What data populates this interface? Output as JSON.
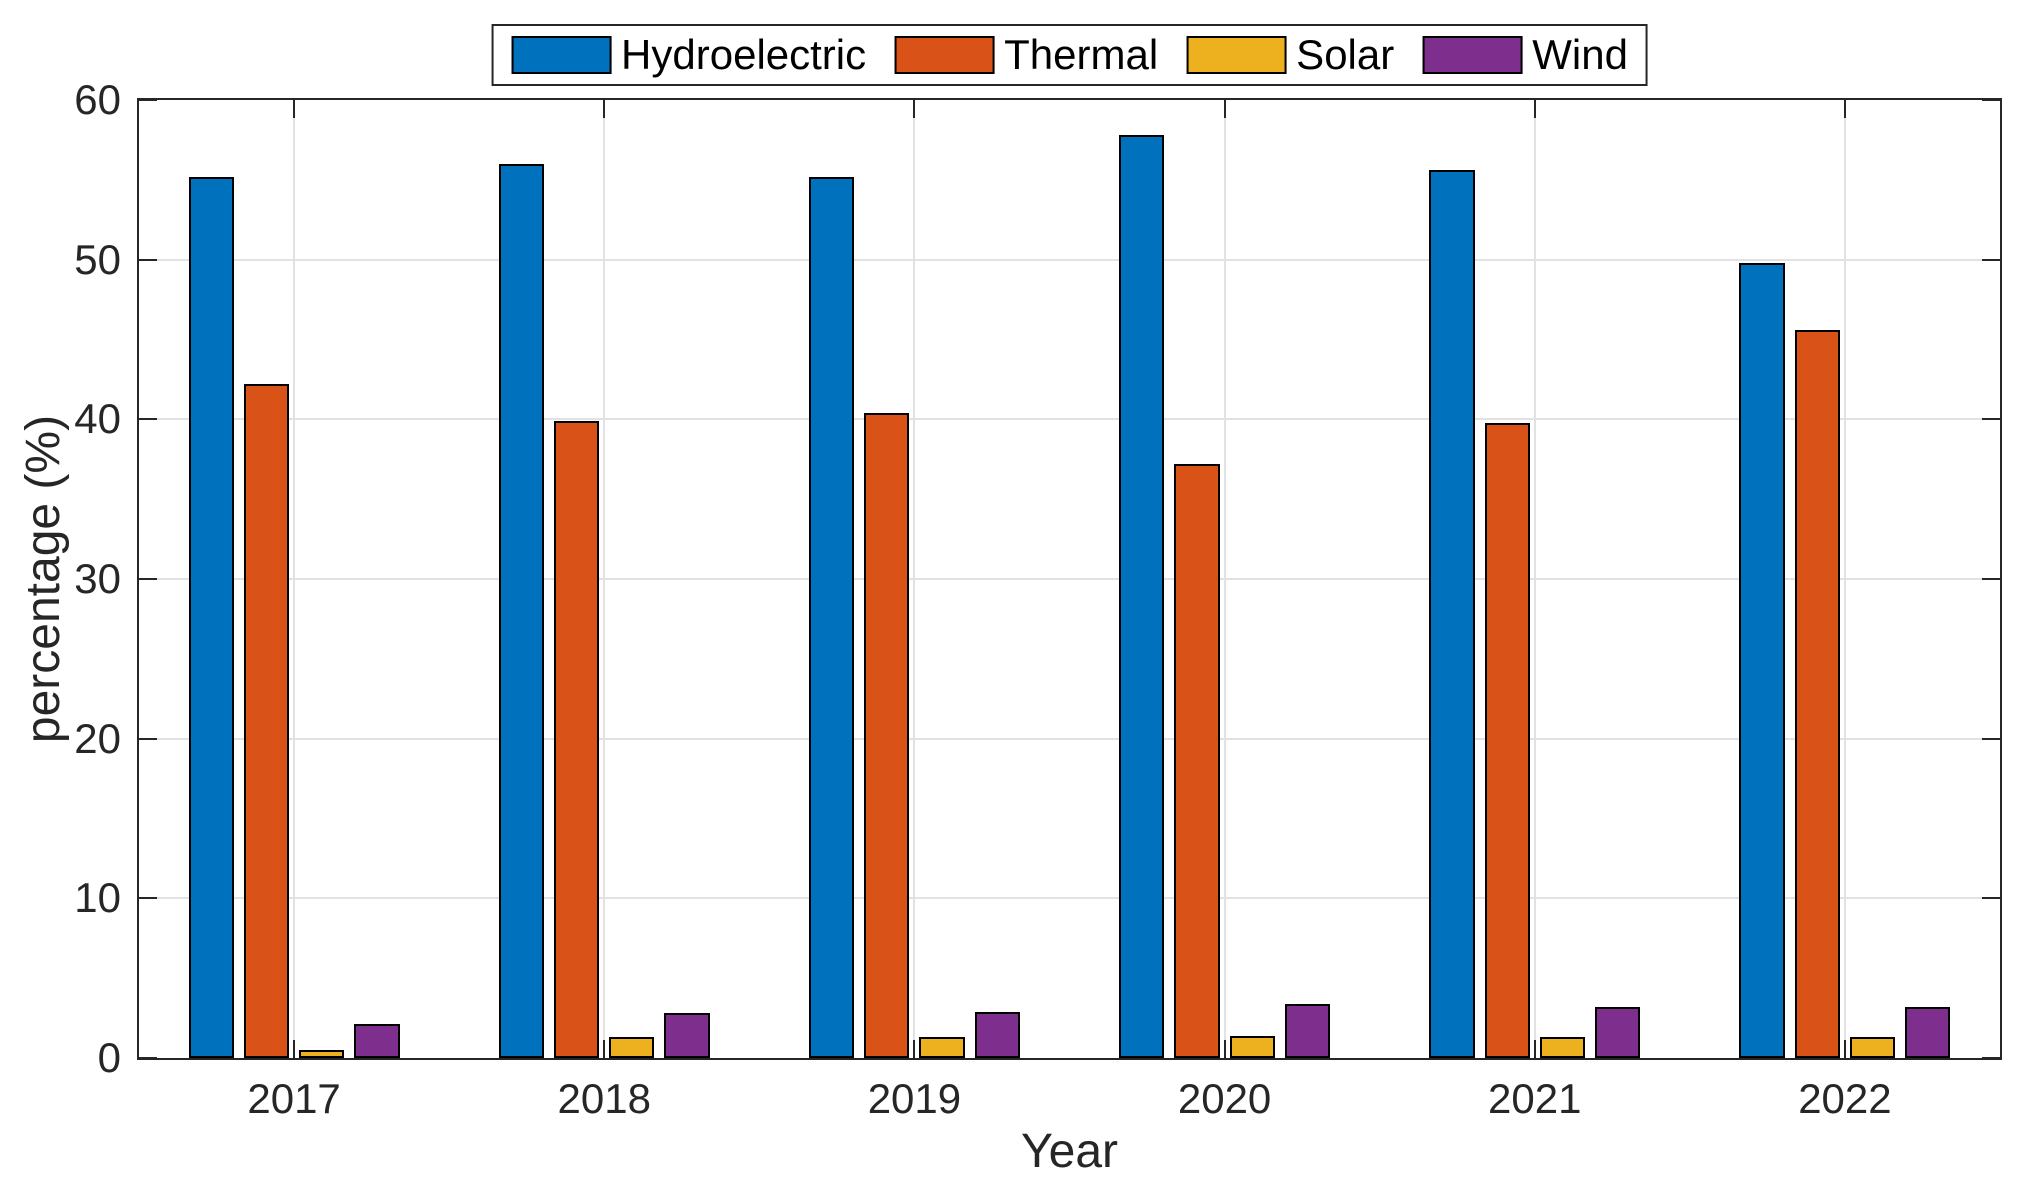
{
  "figure": {
    "background_color": "#ffffff",
    "axis_color": "#262626",
    "grid_color": "#e2e2e2",
    "bar_edge_color": "#000000"
  },
  "chart_data": {
    "type": "bar",
    "title": "",
    "xlabel": "Year",
    "ylabel": "percentage (%)",
    "categories": [
      "2017",
      "2018",
      "2019",
      "2020",
      "2021",
      "2022"
    ],
    "series": [
      {
        "name": "Hydroelectric",
        "color": "#0072BD",
        "values": [
          55.2,
          56.0,
          55.2,
          57.8,
          55.6,
          49.8
        ]
      },
      {
        "name": "Thermal",
        "color": "#D95319",
        "values": [
          42.2,
          39.9,
          40.4,
          37.2,
          39.8,
          45.6
        ]
      },
      {
        "name": "Solar",
        "color": "#EDB120",
        "values": [
          0.5,
          1.3,
          1.3,
          1.4,
          1.3,
          1.3
        ]
      },
      {
        "name": "Wind",
        "color": "#7E2F8E",
        "values": [
          2.1,
          2.8,
          2.9,
          3.4,
          3.2,
          3.2
        ]
      }
    ],
    "ylim": [
      0,
      60
    ],
    "yticks": [
      0,
      10,
      20,
      30,
      40,
      50,
      60
    ],
    "grid": true,
    "legend_position": "top-center"
  }
}
